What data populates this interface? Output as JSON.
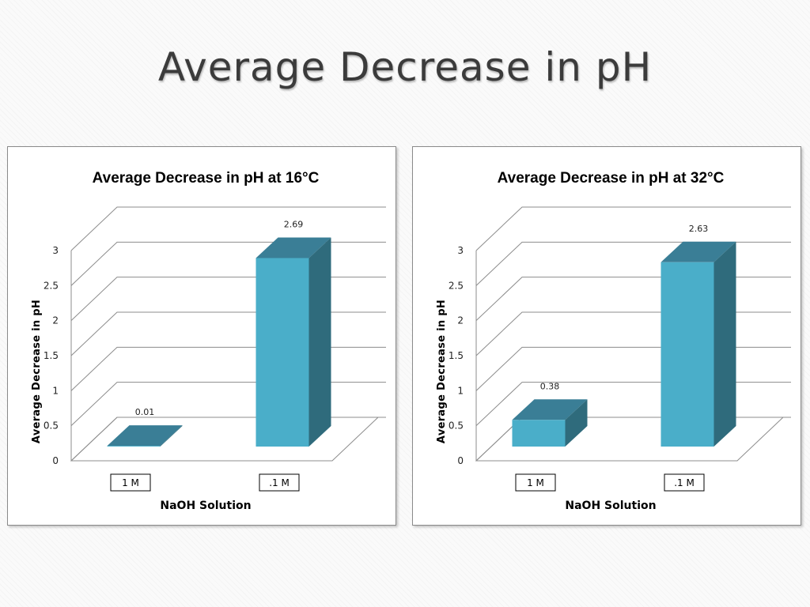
{
  "slide": {
    "title": "Average Decrease in pH"
  },
  "colors": {
    "bar_front": "#4aaec9",
    "bar_top": "#3a7e96",
    "bar_side": "#2f6b7c"
  },
  "chart_data": [
    {
      "type": "bar",
      "title": "Average Decrease in pH at 16°C",
      "xlabel": "NaOH Solution",
      "ylabel": "Average Decrease in pH",
      "categories": [
        "1 M",
        ".1 M"
      ],
      "values": [
        0.01,
        2.69
      ],
      "value_labels": [
        "0.01",
        "2.69"
      ],
      "yticks": [
        "0",
        "0.5",
        "1",
        "1.5",
        "2",
        "2.5",
        "3"
      ],
      "ylim": [
        0,
        3
      ],
      "grid": true,
      "style": "3d-column"
    },
    {
      "type": "bar",
      "title": "Average Decrease in pH at 32°C",
      "xlabel": "NaOH Solution",
      "ylabel": "Average Decrease in pH",
      "categories": [
        "1 M",
        ".1 M"
      ],
      "values": [
        0.38,
        2.63
      ],
      "value_labels": [
        "0.38",
        "2.63"
      ],
      "yticks": [
        "0",
        "0.5",
        "1",
        "1.5",
        "2",
        "2.5",
        "3"
      ],
      "ylim": [
        0,
        3
      ],
      "grid": true,
      "style": "3d-column"
    }
  ]
}
